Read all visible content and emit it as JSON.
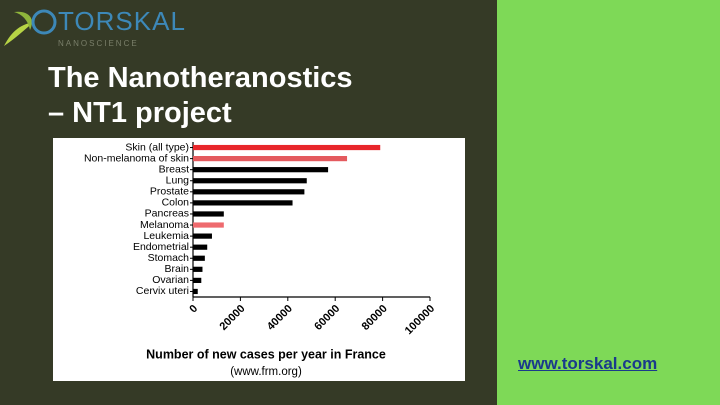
{
  "logo": {
    "name": "TORSKAL",
    "tagline": "NANOSCIENCE"
  },
  "title": [
    "The Nanotheranostics",
    "– NT1 project"
  ],
  "link": "www.torskal.com",
  "chart_data": {
    "type": "hbar",
    "categories": [
      "Skin (all type)",
      "Non-melanoma of skin",
      "Breast",
      "Lung",
      "Prostate",
      "Colon",
      "Pancreas",
      "Melanoma",
      "Leukemia",
      "Endometrial",
      "Stomach",
      "Brain",
      "Ovarian",
      "Cervix uteri"
    ],
    "values": [
      79000,
      65000,
      57000,
      48000,
      47000,
      42000,
      13000,
      13000,
      8000,
      6000,
      5000,
      4000,
      3500,
      2000
    ],
    "colors": [
      "#e8262b",
      "#e45a5e",
      "#000000",
      "#000000",
      "#000000",
      "#000000",
      "#000000",
      "#ee6a6e",
      "#000000",
      "#000000",
      "#000000",
      "#000000",
      "#000000",
      "#000000"
    ],
    "xlim": [
      0,
      100000
    ],
    "xticks": [
      0,
      20000,
      40000,
      60000,
      80000,
      100000
    ],
    "xlabel": "Number of new cases per year in France",
    "source": "(www.frm.org)"
  }
}
